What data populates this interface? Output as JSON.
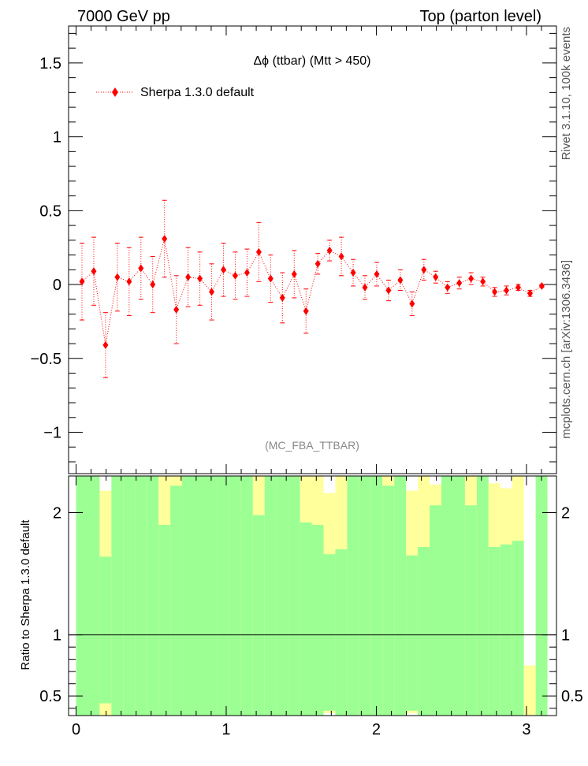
{
  "header": {
    "left": "7000 GeV pp",
    "right": "Top (parton level)"
  },
  "side_labels": {
    "top": "Rivet 3.1.10,  100k events",
    "bottom": "mcplots.cern.ch [arXiv:1306.3436]"
  },
  "colors": {
    "data": "#ff0000",
    "band_inner": "#9cff94",
    "band_outer": "#ffff9c",
    "line": "#000000"
  },
  "chart_data": {
    "type": "scatter",
    "title": "Δϕ (ttbar) (Mtt > 450)",
    "analysis": "(MC_FBA_TTBAR)",
    "legend": {
      "label": "Sherpa 1.3.0 default",
      "position": "top-left"
    },
    "xlabel": "",
    "ylabel": "",
    "xlim": [
      -0.05,
      3.2
    ],
    "ylim": [
      -1.28,
      1.75
    ],
    "xticks": [
      0,
      1,
      2,
      3
    ],
    "yticks": [
      -1,
      -0.5,
      0,
      0.5,
      1,
      1.5
    ],
    "ytick_labels": [
      "−1",
      "−0.5",
      "0",
      "0.5",
      "1",
      "1.5"
    ],
    "series": [
      {
        "name": "Sherpa 1.3.0 default",
        "x": [
          0.0393,
          0.1178,
          0.1963,
          0.2749,
          0.3534,
          0.432,
          0.5105,
          0.589,
          0.6676,
          0.7461,
          0.8247,
          0.9032,
          0.9817,
          1.0603,
          1.1388,
          1.2174,
          1.2959,
          1.3744,
          1.453,
          1.5315,
          1.6101,
          1.6886,
          1.7671,
          1.8457,
          1.9242,
          2.0028,
          2.0813,
          2.1598,
          2.2384,
          2.3169,
          2.3955,
          2.474,
          2.5525,
          2.6311,
          2.7096,
          2.7882,
          2.8667,
          2.9452,
          3.0238,
          3.1023
        ],
        "y": [
          0.02,
          0.09,
          -0.41,
          0.05,
          0.02,
          0.11,
          0.0,
          0.31,
          -0.17,
          0.05,
          0.04,
          -0.05,
          0.1,
          0.06,
          0.08,
          0.22,
          0.04,
          -0.09,
          0.07,
          -0.18,
          0.14,
          0.23,
          0.19,
          0.08,
          -0.02,
          0.07,
          -0.04,
          0.03,
          -0.13,
          0.1,
          0.05,
          -0.02,
          0.01,
          0.04,
          0.02,
          -0.05,
          -0.04,
          -0.02,
          -0.06,
          -0.01
        ],
        "yerr": [
          0.26,
          0.23,
          0.22,
          0.23,
          0.23,
          0.21,
          0.19,
          0.26,
          0.23,
          0.2,
          0.18,
          0.19,
          0.18,
          0.16,
          0.16,
          0.2,
          0.16,
          0.17,
          0.16,
          0.15,
          0.07,
          0.07,
          0.13,
          0.09,
          0.08,
          0.08,
          0.07,
          0.07,
          0.08,
          0.07,
          0.04,
          0.04,
          0.04,
          0.04,
          0.03,
          0.03,
          0.03,
          0.02,
          0.02,
          0.01
        ]
      }
    ],
    "ratio": {
      "ylabel": "Ratio to Sherpa 1.3.0 default",
      "ylim": [
        0.34,
        2.3
      ],
      "yticks": [
        0.5,
        1,
        2
      ],
      "ytick_labels": [
        "0.5",
        "1",
        "2"
      ],
      "reference": 1,
      "bin_width": 0.0785,
      "x_start": 0.0,
      "bands": [
        {
          "yellow": [
            0.34,
            2.3
          ],
          "green": [
            0.34,
            2.3
          ]
        },
        {
          "yellow": [
            0.34,
            2.3
          ],
          "green": [
            0.34,
            2.3
          ]
        },
        {
          "yellow": [
            0.34,
            2.18
          ],
          "green": [
            0.44,
            1.64
          ]
        },
        {
          "yellow": [
            0.34,
            2.3
          ],
          "green": [
            0.34,
            2.3
          ]
        },
        {
          "yellow": [
            0.34,
            2.3
          ],
          "green": [
            0.34,
            2.3
          ]
        },
        {
          "yellow": [
            0.34,
            2.3
          ],
          "green": [
            0.34,
            2.3
          ]
        },
        {
          "yellow": [
            0.34,
            2.3
          ],
          "green": [
            0.34,
            2.3
          ]
        },
        {
          "yellow": [
            0.34,
            2.3
          ],
          "green": [
            0.34,
            1.9
          ]
        },
        {
          "yellow": [
            0.34,
            2.3
          ],
          "green": [
            0.34,
            2.22
          ]
        },
        {
          "yellow": [
            0.34,
            2.3
          ],
          "green": [
            0.34,
            2.3
          ]
        },
        {
          "yellow": [
            0.34,
            2.3
          ],
          "green": [
            0.34,
            2.3
          ]
        },
        {
          "yellow": [
            0.34,
            2.3
          ],
          "green": [
            0.34,
            2.3
          ]
        },
        {
          "yellow": [
            0.34,
            2.3
          ],
          "green": [
            0.34,
            2.3
          ]
        },
        {
          "yellow": [
            0.34,
            2.3
          ],
          "green": [
            0.34,
            2.3
          ]
        },
        {
          "yellow": [
            0.34,
            2.3
          ],
          "green": [
            0.34,
            2.3
          ]
        },
        {
          "yellow": [
            0.34,
            2.3
          ],
          "green": [
            0.34,
            1.98
          ]
        },
        {
          "yellow": [
            0.34,
            2.3
          ],
          "green": [
            0.34,
            2.3
          ]
        },
        {
          "yellow": [
            0.34,
            2.3
          ],
          "green": [
            0.34,
            2.3
          ]
        },
        {
          "yellow": [
            0.34,
            2.3
          ],
          "green": [
            0.34,
            2.3
          ]
        },
        {
          "yellow": [
            0.34,
            2.3
          ],
          "green": [
            0.34,
            1.92
          ]
        },
        {
          "yellow": [
            0.34,
            2.3
          ],
          "green": [
            0.34,
            1.9
          ]
        },
        {
          "yellow": [
            0.36,
            2.16
          ],
          "green": [
            0.38,
            1.66
          ]
        },
        {
          "yellow": [
            0.34,
            2.3
          ],
          "green": [
            0.34,
            1.7
          ]
        },
        {
          "yellow": [
            0.34,
            2.3
          ],
          "green": [
            0.34,
            2.3
          ]
        },
        {
          "yellow": [
            0.34,
            2.3
          ],
          "green": [
            0.34,
            2.3
          ]
        },
        {
          "yellow": [
            0.34,
            2.3
          ],
          "green": [
            0.34,
            2.3
          ]
        },
        {
          "yellow": [
            0.34,
            2.3
          ],
          "green": [
            0.34,
            2.22
          ]
        },
        {
          "yellow": [
            0.34,
            2.3
          ],
          "green": [
            0.34,
            2.3
          ]
        },
        {
          "yellow": [
            0.36,
            2.18
          ],
          "green": [
            0.38,
            1.65
          ]
        },
        {
          "yellow": [
            0.34,
            2.3
          ],
          "green": [
            0.34,
            1.72
          ]
        },
        {
          "yellow": [
            0.34,
            2.23
          ],
          "green": [
            0.34,
            2.06
          ]
        },
        {
          "yellow": [
            0.34,
            2.3
          ],
          "green": [
            0.34,
            2.3
          ]
        },
        {
          "yellow": [
            0.34,
            2.3
          ],
          "green": [
            0.34,
            2.3
          ]
        },
        {
          "yellow": [
            0.34,
            2.3
          ],
          "green": [
            0.34,
            2.06
          ]
        },
        {
          "yellow": [
            0.34,
            2.3
          ],
          "green": [
            0.34,
            2.3
          ]
        },
        {
          "yellow": [
            0.34,
            2.24
          ],
          "green": [
            0.34,
            1.72
          ]
        },
        {
          "yellow": [
            0.34,
            2.2
          ],
          "green": [
            0.34,
            1.74
          ]
        },
        {
          "yellow": [
            0.34,
            2.3
          ],
          "green": [
            0.34,
            1.77
          ]
        },
        {
          "yellow": [
            0.34,
            0.75
          ],
          "green": [
            0.34,
            0.34
          ]
        },
        {
          "yellow": [
            0.34,
            2.12
          ],
          "green": [
            0.34,
            2.3
          ]
        }
      ]
    }
  }
}
